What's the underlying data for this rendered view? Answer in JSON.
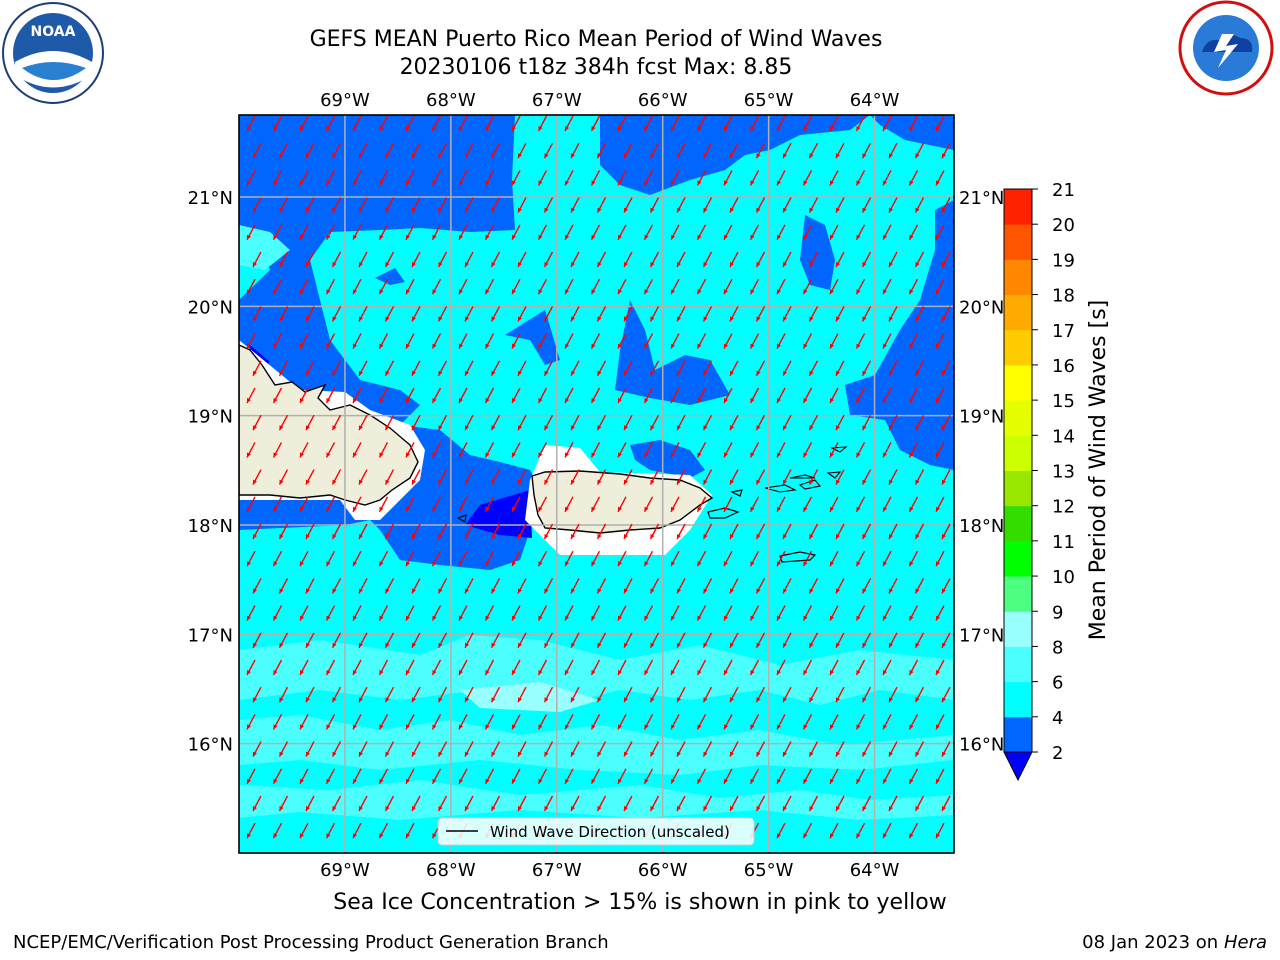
{
  "title_line1": "GEFS MEAN Puerto Rico Mean Period of Wind Waves",
  "title_line2": "20230106 t18z 384h fcst   Max: 8.85",
  "map": {
    "lon_labels": [
      "69°W",
      "68°W",
      "67°W",
      "66°W",
      "65°W",
      "64°W"
    ],
    "lat_labels": [
      "21°N",
      "20°N",
      "19°N",
      "18°N",
      "17°N",
      "16°N"
    ],
    "lon_values": [
      -69,
      -68,
      -67,
      -66,
      -65,
      -64
    ],
    "lat_values": [
      21,
      20,
      19,
      18,
      17,
      16
    ],
    "lon_range": [
      -70.0,
      -63.25
    ],
    "lat_range": [
      15.0,
      21.75
    ],
    "legend_label": "Wind Wave Direction (unscaled)",
    "arrow_color": "#ff0000",
    "land_color": "#efeedb"
  },
  "colorbar": {
    "label": "Mean Period of Wind Waves [s]",
    "levels": [
      "2",
      "4",
      "6",
      "8",
      "9",
      "10",
      "11",
      "12",
      "13",
      "14",
      "15",
      "16",
      "17",
      "18",
      "19",
      "20",
      "21"
    ],
    "colors": [
      "#0066ff",
      "#00ffff",
      "#4cffff",
      "#99ffff",
      "#4cff80",
      "#00ff00",
      "#33dd00",
      "#99e600",
      "#ccff00",
      "#e6ff00",
      "#ffff00",
      "#ffcc00",
      "#ffaa00",
      "#ff8800",
      "#ff5500",
      "#ff2200"
    ],
    "under_color": "#0000ff"
  },
  "subnote": "Sea Ice Concentration > 15% is shown in pink to yellow",
  "credit": "NCEP/EMC/Verification Post Processing Product Generation Branch",
  "date": "08 Jan 2023 on ",
  "machine": "Hera"
}
